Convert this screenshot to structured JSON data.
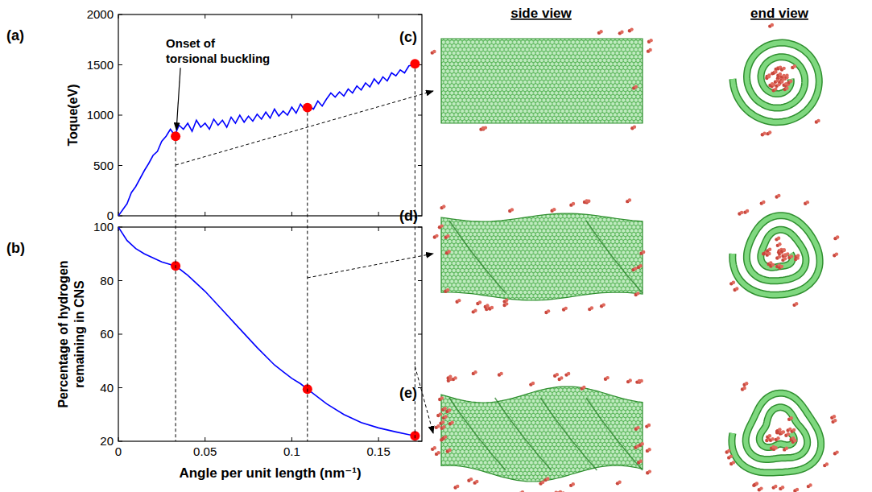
{
  "chart_data": [
    {
      "type": "line",
      "panel": "(a)",
      "y_label": "Toque(eV)",
      "xlim": [
        0,
        0.175
      ],
      "xticks": [
        0,
        0.05,
        0.1,
        0.15
      ],
      "ylim": [
        0,
        2000
      ],
      "yticks": [
        0,
        500,
        1000,
        1500,
        2000
      ],
      "tick_labels": "y",
      "annotations": [
        {
          "text": "Onset of torsional buckling",
          "x": 0.033,
          "y": 790
        }
      ],
      "series": [
        {
          "type": "line",
          "color": "#0000ff",
          "x": [
            0,
            0.0025,
            0.005,
            0.0075,
            0.01,
            0.0125,
            0.015,
            0.0175,
            0.02,
            0.0225,
            0.025,
            0.0275,
            0.03,
            0.0325,
            0.035,
            0.0375,
            0.04,
            0.0425,
            0.045,
            0.0475,
            0.05,
            0.0525,
            0.055,
            0.0575,
            0.06,
            0.0625,
            0.065,
            0.0675,
            0.07,
            0.0725,
            0.075,
            0.0775,
            0.08,
            0.0825,
            0.085,
            0.0875,
            0.09,
            0.0925,
            0.095,
            0.0975,
            0.1,
            0.1025,
            0.105,
            0.1075,
            0.11,
            0.1125,
            0.115,
            0.1175,
            0.12,
            0.1225,
            0.125,
            0.1275,
            0.13,
            0.1325,
            0.135,
            0.1375,
            0.14,
            0.1425,
            0.145,
            0.1475,
            0.15,
            0.1525,
            0.155,
            0.1575,
            0.16,
            0.1625,
            0.165,
            0.1675,
            0.17
          ],
          "values": [
            0,
            60,
            120,
            230,
            290,
            370,
            450,
            520,
            600,
            640,
            740,
            790,
            860,
            800,
            900,
            860,
            920,
            840,
            950,
            880,
            920,
            860,
            960,
            900,
            950,
            880,
            980,
            920,
            1000,
            930,
            990,
            940,
            1010,
            960,
            1030,
            970,
            1060,
            990,
            1040,
            1000,
            1080,
            1020,
            1110,
            1050,
            1090,
            1060,
            1140,
            1090,
            1160,
            1220,
            1180,
            1230,
            1190,
            1260,
            1220,
            1290,
            1250,
            1320,
            1280,
            1360,
            1310,
            1380,
            1340,
            1420,
            1390,
            1450,
            1420,
            1490,
            1500
          ]
        },
        {
          "type": "scatter",
          "color": "#ff0000",
          "marker": "circle",
          "x": [
            0.033,
            0.109,
            0.171
          ],
          "values": [
            790,
            1075,
            1510
          ]
        }
      ]
    },
    {
      "type": "line",
      "panel": "(b)",
      "y_label": "Percentage of hydrogen remaining in CNS",
      "x_label": "Angle per unit length (nm⁻¹)",
      "xlim": [
        0,
        0.175
      ],
      "xticks": [
        0,
        0.05,
        0.1,
        0.15
      ],
      "ylim": [
        20,
        100
      ],
      "yticks": [
        20,
        40,
        60,
        80,
        100
      ],
      "series": [
        {
          "type": "line",
          "color": "#0000ff",
          "x": [
            0,
            0.005,
            0.01,
            0.015,
            0.02,
            0.025,
            0.03,
            0.035,
            0.04,
            0.05,
            0.06,
            0.07,
            0.08,
            0.09,
            0.095,
            0.1,
            0.105,
            0.11,
            0.12,
            0.13,
            0.14,
            0.15,
            0.16,
            0.171
          ],
          "values": [
            100,
            95,
            92,
            90,
            88.5,
            87,
            86,
            84.5,
            82,
            76,
            69,
            62,
            55,
            48.5,
            46,
            43.5,
            41.5,
            39,
            34,
            30,
            27,
            25,
            23.5,
            22
          ]
        },
        {
          "type": "scatter",
          "color": "#ff0000",
          "marker": "circle",
          "x": [
            0.033,
            0.109,
            0.171
          ],
          "values": [
            85.5,
            39.5,
            22
          ]
        }
      ]
    }
  ],
  "structures": {
    "headers": [
      "side view",
      "end view"
    ],
    "panels": [
      "(c)",
      "(d)",
      "(e)"
    ]
  }
}
